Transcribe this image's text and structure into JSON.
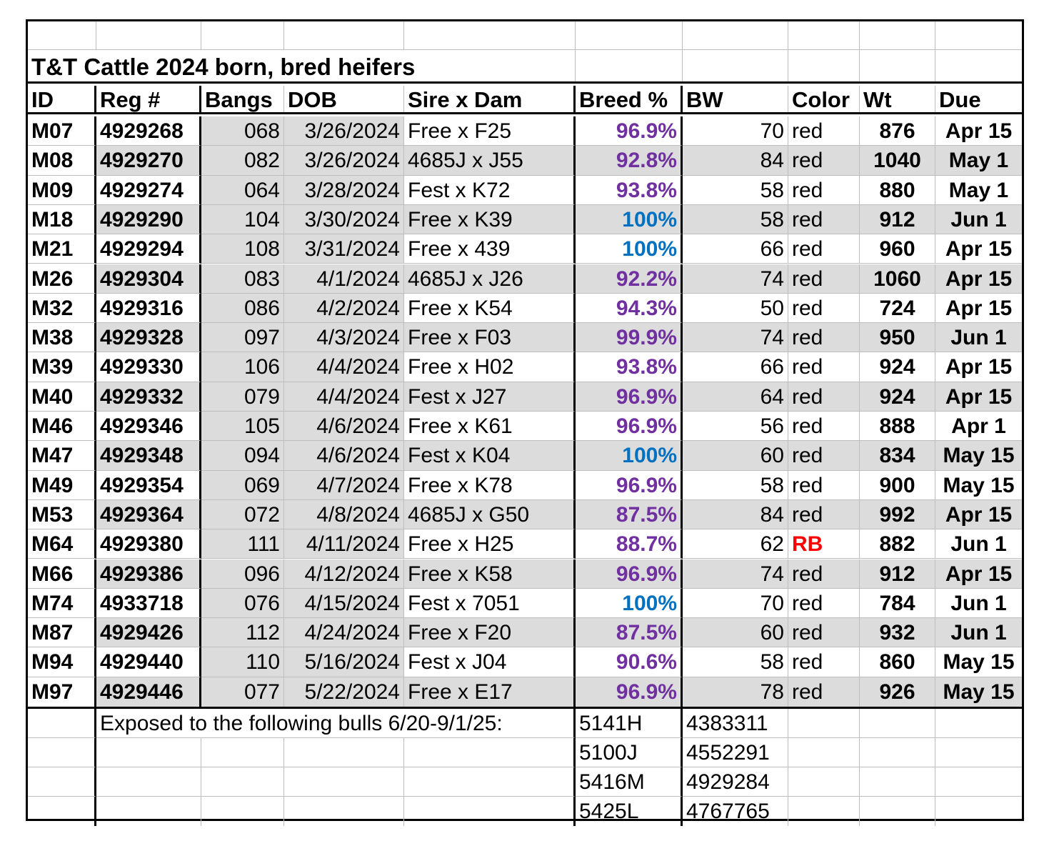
{
  "title": "T&T Cattle  2024 born, bred heifers",
  "headers": [
    "ID",
    "Reg #",
    "Bangs",
    "DOB",
    "Sire x Dam",
    "Breed %",
    "BW",
    "Color",
    "Wt",
    "Due"
  ],
  "rows": [
    {
      "id": "M07",
      "reg": "4929268",
      "bangs": "068",
      "dob": "3/26/2024",
      "sire_dam": "Free x F25",
      "breed": "96.9%",
      "breed_color": "#7030a0",
      "bw": "70",
      "color": "red",
      "wt": "876",
      "due": "Apr 15"
    },
    {
      "id": "M08",
      "reg": "4929270",
      "bangs": "082",
      "dob": "3/26/2024",
      "sire_dam": "4685J x J55",
      "breed": "92.8%",
      "breed_color": "#7030a0",
      "bw": "84",
      "color": "red",
      "wt": "1040",
      "due": "May 1"
    },
    {
      "id": "M09",
      "reg": "4929274",
      "bangs": "064",
      "dob": "3/28/2024",
      "sire_dam": "Fest x K72",
      "breed": "93.8%",
      "breed_color": "#7030a0",
      "bw": "58",
      "color": "red",
      "wt": "880",
      "due": "May 1"
    },
    {
      "id": "M18",
      "reg": "4929290",
      "bangs": "104",
      "dob": "3/30/2024",
      "sire_dam": "Free x K39",
      "breed": "100%",
      "breed_color": "#0070c0",
      "bw": "58",
      "color": "red",
      "wt": "912",
      "due": "Jun 1"
    },
    {
      "id": "M21",
      "reg": "4929294",
      "bangs": "108",
      "dob": "3/31/2024",
      "sire_dam": "Free x 439",
      "breed": "100%",
      "breed_color": "#0070c0",
      "bw": "66",
      "color": "red",
      "wt": "960",
      "due": "Apr 15"
    },
    {
      "id": "M26",
      "reg": "4929304",
      "bangs": "083",
      "dob": "4/1/2024",
      "sire_dam": "4685J x J26",
      "breed": "92.2%",
      "breed_color": "#7030a0",
      "bw": "74",
      "color": "red",
      "wt": "1060",
      "due": "Apr 15"
    },
    {
      "id": "M32",
      "reg": "4929316",
      "bangs": "086",
      "dob": "4/2/2024",
      "sire_dam": "Free x K54",
      "breed": "94.3%",
      "breed_color": "#7030a0",
      "bw": "50",
      "color": "red",
      "wt": "724",
      "due": "Apr 15"
    },
    {
      "id": "M38",
      "reg": "4929328",
      "bangs": "097",
      "dob": "4/3/2024",
      "sire_dam": "Free x F03",
      "breed": "99.9%",
      "breed_color": "#7030a0",
      "bw": "74",
      "color": "red",
      "wt": "950",
      "due": "Jun 1"
    },
    {
      "id": "M39",
      "reg": "4929330",
      "bangs": "106",
      "dob": "4/4/2024",
      "sire_dam": "Free x H02",
      "breed": "93.8%",
      "breed_color": "#7030a0",
      "bw": "66",
      "color": "red",
      "wt": "924",
      "due": "Apr 15"
    },
    {
      "id": "M40",
      "reg": "4929332",
      "bangs": "079",
      "dob": "4/4/2024",
      "sire_dam": "Fest x J27",
      "breed": "96.9%",
      "breed_color": "#7030a0",
      "bw": "64",
      "color": "red",
      "wt": "924",
      "due": "Apr 15"
    },
    {
      "id": "M46",
      "reg": "4929346",
      "bangs": "105",
      "dob": "4/6/2024",
      "sire_dam": "Free x K61",
      "breed": "96.9%",
      "breed_color": "#7030a0",
      "bw": "56",
      "color": "red",
      "wt": "888",
      "due": "Apr 1"
    },
    {
      "id": "M47",
      "reg": "4929348",
      "bangs": "094",
      "dob": "4/6/2024",
      "sire_dam": "Fest x K04",
      "breed": "100%",
      "breed_color": "#0070c0",
      "bw": "60",
      "color": "red",
      "wt": "834",
      "due": "May 15"
    },
    {
      "id": "M49",
      "reg": "4929354",
      "bangs": "069",
      "dob": "4/7/2024",
      "sire_dam": "Free x K78",
      "breed": "96.9%",
      "breed_color": "#7030a0",
      "bw": "58",
      "color": "red",
      "wt": "900",
      "due": "May 15"
    },
    {
      "id": "M53",
      "reg": "4929364",
      "bangs": "072",
      "dob": "4/8/2024",
      "sire_dam": "4685J x G50",
      "breed": "87.5%",
      "breed_color": "#7030a0",
      "bw": "84",
      "color": "red",
      "wt": "992",
      "due": "Apr 15"
    },
    {
      "id": "M64",
      "reg": "4929380",
      "bangs": "111",
      "dob": "4/11/2024",
      "sire_dam": "Free x H25",
      "breed": "88.7%",
      "breed_color": "#7030a0",
      "bw": "62",
      "color": "RB",
      "wt": "882",
      "due": "Jun 1"
    },
    {
      "id": "M66",
      "reg": "4929386",
      "bangs": "096",
      "dob": "4/12/2024",
      "sire_dam": "Free x K58",
      "breed": "96.9%",
      "breed_color": "#7030a0",
      "bw": "74",
      "color": "red",
      "wt": "912",
      "due": "Apr 15"
    },
    {
      "id": "M74",
      "reg": "4933718",
      "bangs": "076",
      "dob": "4/15/2024",
      "sire_dam": "Fest x 7051",
      "breed": "100%",
      "breed_color": "#0070c0",
      "bw": "70",
      "color": "red",
      "wt": "784",
      "due": "Jun 1"
    },
    {
      "id": "M87",
      "reg": "4929426",
      "bangs": "112",
      "dob": "4/24/2024",
      "sire_dam": "Free x F20",
      "breed": "87.5%",
      "breed_color": "#7030a0",
      "bw": "60",
      "color": "red",
      "wt": "932",
      "due": "Jun 1"
    },
    {
      "id": "M94",
      "reg": "4929440",
      "bangs": "110",
      "dob": "5/16/2024",
      "sire_dam": "Fest x J04",
      "breed": "90.6%",
      "breed_color": "#7030a0",
      "bw": "58",
      "color": "red",
      "wt": "860",
      "due": "May 15"
    },
    {
      "id": "M97",
      "reg": "4929446",
      "bangs": "077",
      "dob": "5/22/2024",
      "sire_dam": "Free x E17",
      "breed": "96.9%",
      "breed_color": "#7030a0",
      "bw": "78",
      "color": "red",
      "wt": "926",
      "due": "May 15"
    }
  ],
  "footer": {
    "note": "Exposed to the following bulls 6/20-9/1/25:",
    "bulls": [
      {
        "name": "5141H",
        "reg": "4383311"
      },
      {
        "name": "5100J",
        "reg": "4552291"
      },
      {
        "name": "5416M",
        "reg": "4929284"
      },
      {
        "name": "5425L",
        "reg": "4767765"
      }
    ]
  },
  "colors": {
    "purple": "#7030a0",
    "blue": "#0070c0",
    "rb_red": "#ff0000",
    "shade": "#dcdcdc"
  }
}
